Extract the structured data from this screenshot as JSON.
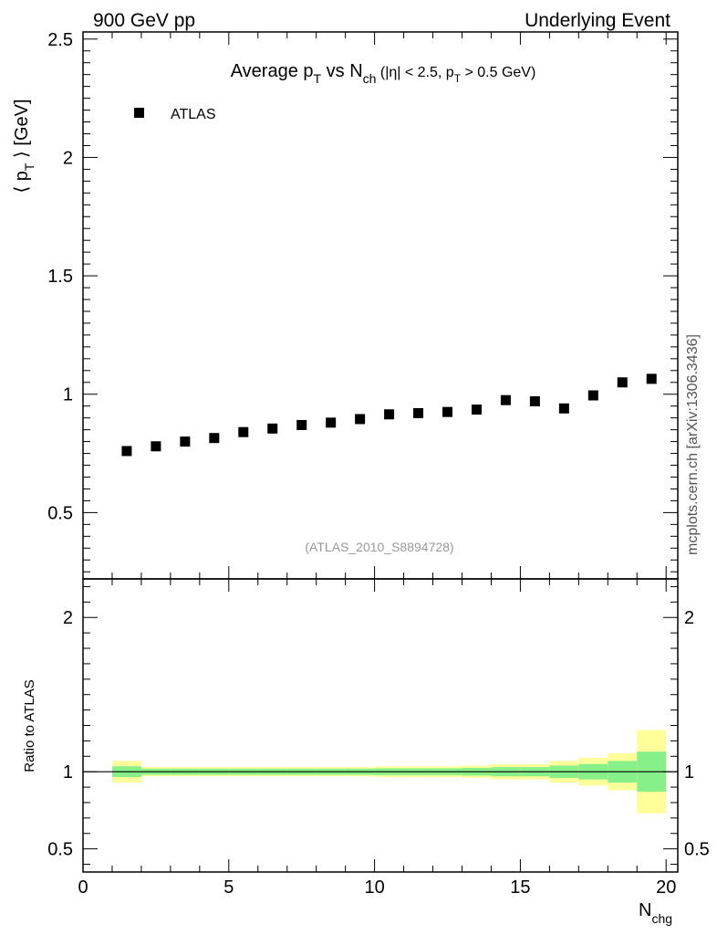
{
  "header": {
    "left": "900 GeV pp",
    "right": "Underlying Event"
  },
  "side_label": "mcplots.cern.ch [arXiv:1306.3436]",
  "chart_data": [
    {
      "type": "scatter",
      "title_parts": {
        "t1": "Average p",
        "t1sub": "T",
        "t2": " vs N",
        "t2sub": "ch",
        "t3": " (|η| < 2.5, p",
        "t3sub": "T",
        "t4": " > 0.5 GeV)"
      },
      "ylabel_parts": {
        "a": "⟨ p",
        "sub": "T",
        "b": " ⟩ [GeV]"
      },
      "analysis_label": "(ATLAS_2010_S8894728)",
      "legend": {
        "entry": "ATLAS",
        "placement": "top-left",
        "marker": "square"
      },
      "xlim": [
        0,
        20.4
      ],
      "ylim": [
        0.22,
        2.53
      ],
      "yticks": [
        0.5,
        1,
        1.5,
        2,
        2.5
      ],
      "ytick_labels": [
        "0.5",
        "1",
        "1.5",
        "2",
        "2.5"
      ],
      "series": [
        {
          "name": "ATLAS",
          "x": [
            1.5,
            2.5,
            3.5,
            4.5,
            5.5,
            6.5,
            7.5,
            8.5,
            9.5,
            10.5,
            11.5,
            12.5,
            13.5,
            14.5,
            15.5,
            16.5,
            17.5,
            18.5,
            19.5
          ],
          "y": [
            0.76,
            0.78,
            0.8,
            0.815,
            0.84,
            0.855,
            0.87,
            0.88,
            0.895,
            0.915,
            0.92,
            0.925,
            0.935,
            0.975,
            0.97,
            0.94,
            0.995,
            1.05,
            1.065
          ]
        }
      ]
    },
    {
      "type": "area",
      "ylabel": "Ratio to ATLAS",
      "xlabel_parts": {
        "a": "N",
        "sub": "chg"
      },
      "xlim": [
        0,
        20.4
      ],
      "ylim": [
        0.35,
        2.25
      ],
      "xticks": [
        0,
        5,
        10,
        15,
        20
      ],
      "xtick_labels": [
        "0",
        "5",
        "10",
        "15",
        "20"
      ],
      "yticks": [
        0.5,
        1,
        2
      ],
      "ytick_labels": [
        "0.5",
        "1",
        "2"
      ],
      "reference_line": 1,
      "bins": [
        {
          "lo": 1,
          "hi": 2,
          "inner": [
            0.965,
            1.035
          ],
          "outer": [
            0.93,
            1.07
          ]
        },
        {
          "lo": 2,
          "hi": 3,
          "inner": [
            0.98,
            1.02
          ],
          "outer": [
            0.97,
            1.03
          ]
        },
        {
          "lo": 3,
          "hi": 4,
          "inner": [
            0.98,
            1.02
          ],
          "outer": [
            0.97,
            1.03
          ]
        },
        {
          "lo": 4,
          "hi": 5,
          "inner": [
            0.98,
            1.02
          ],
          "outer": [
            0.97,
            1.03
          ]
        },
        {
          "lo": 5,
          "hi": 6,
          "inner": [
            0.98,
            1.02
          ],
          "outer": [
            0.97,
            1.03
          ]
        },
        {
          "lo": 6,
          "hi": 7,
          "inner": [
            0.98,
            1.02
          ],
          "outer": [
            0.97,
            1.03
          ]
        },
        {
          "lo": 7,
          "hi": 8,
          "inner": [
            0.98,
            1.02
          ],
          "outer": [
            0.97,
            1.03
          ]
        },
        {
          "lo": 8,
          "hi": 9,
          "inner": [
            0.98,
            1.02
          ],
          "outer": [
            0.97,
            1.03
          ]
        },
        {
          "lo": 9,
          "hi": 10,
          "inner": [
            0.98,
            1.02
          ],
          "outer": [
            0.97,
            1.03
          ]
        },
        {
          "lo": 10,
          "hi": 11,
          "inner": [
            0.978,
            1.022
          ],
          "outer": [
            0.965,
            1.035
          ]
        },
        {
          "lo": 11,
          "hi": 12,
          "inner": [
            0.978,
            1.022
          ],
          "outer": [
            0.965,
            1.035
          ]
        },
        {
          "lo": 12,
          "hi": 13,
          "inner": [
            0.978,
            1.022
          ],
          "outer": [
            0.965,
            1.035
          ]
        },
        {
          "lo": 13,
          "hi": 14,
          "inner": [
            0.975,
            1.025
          ],
          "outer": [
            0.96,
            1.04
          ]
        },
        {
          "lo": 14,
          "hi": 15,
          "inner": [
            0.97,
            1.03
          ],
          "outer": [
            0.95,
            1.05
          ]
        },
        {
          "lo": 15,
          "hi": 16,
          "inner": [
            0.97,
            1.03
          ],
          "outer": [
            0.95,
            1.05
          ]
        },
        {
          "lo": 16,
          "hi": 17,
          "inner": [
            0.96,
            1.04
          ],
          "outer": [
            0.93,
            1.07
          ]
        },
        {
          "lo": 17,
          "hi": 18,
          "inner": [
            0.95,
            1.05
          ],
          "outer": [
            0.91,
            1.09
          ]
        },
        {
          "lo": 18,
          "hi": 19,
          "inner": [
            0.93,
            1.07
          ],
          "outer": [
            0.88,
            1.12
          ]
        },
        {
          "lo": 19,
          "hi": 20,
          "inner": [
            0.87,
            1.13
          ],
          "outer": [
            0.73,
            1.27
          ]
        }
      ],
      "colors": {
        "inner": "#88f088",
        "outer": "#ffff99"
      }
    }
  ]
}
